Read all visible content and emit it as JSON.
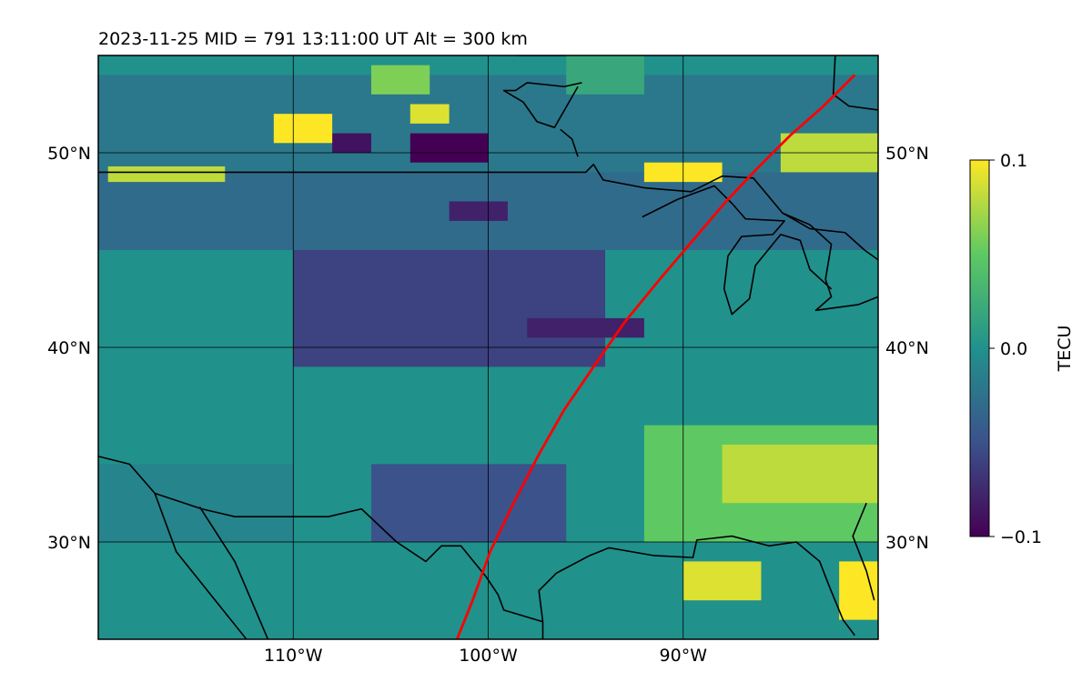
{
  "title": "2023-11-25  MID = 791    13:11:00  UT  Alt = 300 km",
  "map": {
    "lon_range": [
      -120,
      -80
    ],
    "lat_range": [
      25,
      55
    ],
    "lon_ticks": [
      {
        "value": -110,
        "label": "110°W"
      },
      {
        "value": -100,
        "label": "100°W"
      },
      {
        "value": -90,
        "label": "90°W"
      }
    ],
    "lat_ticks": [
      {
        "value": 30,
        "label": "30°N"
      },
      {
        "value": 40,
        "label": "40°N"
      },
      {
        "value": 50,
        "label": "50°N"
      }
    ],
    "grid": true,
    "track_color": "#ff0000",
    "track": [
      [
        -101.6,
        25
      ],
      [
        -100.8,
        27
      ],
      [
        -99.9,
        29.5
      ],
      [
        -98.7,
        32
      ],
      [
        -97.4,
        34.5
      ],
      [
        -96.1,
        36.8
      ],
      [
        -94.6,
        39
      ],
      [
        -93,
        41.3
      ],
      [
        -91.2,
        43.5
      ],
      [
        -89.5,
        45.5
      ],
      [
        -87.8,
        47.5
      ],
      [
        -86.2,
        49.2
      ],
      [
        -84.5,
        50.9
      ],
      [
        -82.8,
        52.4
      ],
      [
        -81.2,
        54
      ]
    ],
    "coastlines": [
      [
        [
          -120,
          34.4
        ],
        [
          -118.4,
          34
        ],
        [
          -117.1,
          32.5
        ],
        [
          -114.7,
          31.7
        ],
        [
          -113,
          31.3
        ],
        [
          -111,
          31.3
        ],
        [
          -108.2,
          31.3
        ],
        [
          -106.5,
          31.7
        ],
        [
          -104.7,
          30
        ],
        [
          -103.2,
          29
        ],
        [
          -102.4,
          29.8
        ],
        [
          -101.4,
          29.8
        ],
        [
          -100.1,
          28.2
        ],
        [
          -99.5,
          27.3
        ],
        [
          -99.2,
          26.5
        ],
        [
          -97.2,
          25.9
        ],
        [
          -97.2,
          25
        ]
      ],
      [
        [
          -117.1,
          32.5
        ],
        [
          -116,
          29.5
        ],
        [
          -114,
          27
        ],
        [
          -112.4,
          25
        ]
      ],
      [
        [
          -114.8,
          31.8
        ],
        [
          -113,
          29
        ],
        [
          -111.3,
          25
        ]
      ],
      [
        [
          -97.2,
          25.9
        ],
        [
          -97.4,
          27.5
        ],
        [
          -96.5,
          28.4
        ],
        [
          -94.8,
          29.3
        ],
        [
          -93.8,
          29.7
        ],
        [
          -91.5,
          29.3
        ],
        [
          -89.5,
          29.2
        ],
        [
          -89.3,
          30.1
        ],
        [
          -87.5,
          30.3
        ],
        [
          -85.6,
          29.8
        ],
        [
          -84.2,
          30
        ],
        [
          -83,
          29
        ],
        [
          -82.5,
          27.7
        ],
        [
          -81.8,
          26
        ],
        [
          -81.2,
          25.2
        ]
      ],
      [
        [
          -80.2,
          27
        ],
        [
          -80.6,
          28.5
        ],
        [
          -81.3,
          30.3
        ],
        [
          -80.6,
          32
        ]
      ],
      [
        [
          -120,
          49
        ],
        [
          -95,
          49
        ],
        [
          -94.6,
          49.4
        ],
        [
          -94.1,
          48.6
        ],
        [
          -92,
          48.2
        ],
        [
          -89.6,
          48
        ],
        [
          -88,
          48.8
        ],
        [
          -86.4,
          48.7
        ],
        [
          -84.9,
          46.9
        ],
        [
          -83.5,
          46.3
        ],
        [
          -82.4,
          45.3
        ],
        [
          -82.7,
          43.5
        ],
        [
          -82.4,
          42.6
        ],
        [
          -83.2,
          41.9
        ],
        [
          -81,
          42.2
        ],
        [
          -80,
          42.6
        ]
      ],
      [
        [
          -92.1,
          46.7
        ],
        [
          -90.3,
          47.6
        ],
        [
          -88.4,
          48.3
        ],
        [
          -87.5,
          47.4
        ],
        [
          -86.8,
          46.6
        ],
        [
          -84.8,
          46.5
        ],
        [
          -85.4,
          45.8
        ],
        [
          -87,
          45.7
        ],
        [
          -87.7,
          44.7
        ],
        [
          -87.9,
          43
        ],
        [
          -87.5,
          41.7
        ],
        [
          -86.6,
          42.5
        ],
        [
          -86.3,
          44.2
        ],
        [
          -85,
          45.8
        ],
        [
          -84,
          45.5
        ],
        [
          -83.5,
          44
        ],
        [
          -82.4,
          43
        ]
      ],
      [
        [
          -84.9,
          46.9
        ],
        [
          -83.5,
          46.1
        ],
        [
          -81.7,
          45.9
        ],
        [
          -80.7,
          45
        ],
        [
          -80,
          44.5
        ]
      ],
      [
        [
          -80,
          52.2
        ],
        [
          -81.5,
          52.4
        ],
        [
          -82.3,
          53
        ],
        [
          -82.2,
          55
        ]
      ],
      [
        [
          -98.5,
          55
        ],
        [
          -96,
          55
        ]
      ],
      [
        [
          -95.2,
          53.6
        ],
        [
          -96.1,
          53.4
        ],
        [
          -98,
          53.6
        ],
        [
          -98.6,
          53.2
        ],
        [
          -99.2,
          53.2
        ],
        [
          -98.2,
          52.6
        ],
        [
          -97.5,
          51.6
        ],
        [
          -96.6,
          51.3
        ],
        [
          -95.4,
          53.4
        ]
      ],
      [
        [
          -95.4,
          49.8
        ],
        [
          -95.7,
          50.7
        ],
        [
          -96.3,
          51.2
        ]
      ]
    ],
    "field": [
      {
        "lon": -120,
        "lat": 49,
        "w": 40,
        "h": 5,
        "value": -0.02
      },
      {
        "lon": -120,
        "lat": 45,
        "w": 40,
        "h": 4,
        "value": -0.03
      },
      {
        "lon": -110,
        "lat": 39,
        "w": 16,
        "h": 6,
        "value": -0.06
      },
      {
        "lon": -120,
        "lat": 30,
        "w": 10,
        "h": 4,
        "value": -0.01
      },
      {
        "lon": -106,
        "lat": 30,
        "w": 10,
        "h": 4,
        "value": -0.05
      },
      {
        "lon": -92,
        "lat": 30,
        "w": 12,
        "h": 6,
        "value": 0.05
      },
      {
        "lon": -88,
        "lat": 32,
        "w": 8,
        "h": 3,
        "value": 0.08
      },
      {
        "lon": -104,
        "lat": 49.5,
        "w": 4,
        "h": 1.5,
        "value": -0.1
      },
      {
        "lon": -108,
        "lat": 50,
        "w": 2,
        "h": 1,
        "value": -0.09
      },
      {
        "lon": -102,
        "lat": 46.5,
        "w": 3,
        "h": 1,
        "value": -0.08
      },
      {
        "lon": -98,
        "lat": 40.5,
        "w": 6,
        "h": 1,
        "value": -0.08
      },
      {
        "lon": -111,
        "lat": 50.5,
        "w": 3,
        "h": 1.5,
        "value": 0.1
      },
      {
        "lon": -104,
        "lat": 51.5,
        "w": 2,
        "h": 1,
        "value": 0.09
      },
      {
        "lon": -119.5,
        "lat": 48.5,
        "w": 6,
        "h": 0.8,
        "value": 0.08
      },
      {
        "lon": -92,
        "lat": 48.5,
        "w": 4,
        "h": 1,
        "value": 0.1
      },
      {
        "lon": -85,
        "lat": 49,
        "w": 5,
        "h": 2,
        "value": 0.08
      },
      {
        "lon": -90,
        "lat": 27,
        "w": 4,
        "h": 2,
        "value": 0.09
      },
      {
        "lon": -82,
        "lat": 26,
        "w": 2,
        "h": 3,
        "value": 0.1
      },
      {
        "lon": -106,
        "lat": 53,
        "w": 3,
        "h": 1.5,
        "value": 0.06
      },
      {
        "lon": -96,
        "lat": 53,
        "w": 4,
        "h": 2,
        "value": 0.02
      }
    ]
  },
  "colorbar": {
    "label": "TECU",
    "min": -0.1,
    "max": 0.1,
    "ticks": [
      {
        "value": 0.1,
        "label": "0.1"
      },
      {
        "value": 0.0,
        "label": "0.0"
      },
      {
        "value": -0.1,
        "label": "−0.1"
      }
    ],
    "colors": [
      "#440154",
      "#3b528b",
      "#21918c",
      "#5ec962",
      "#fde725"
    ]
  }
}
